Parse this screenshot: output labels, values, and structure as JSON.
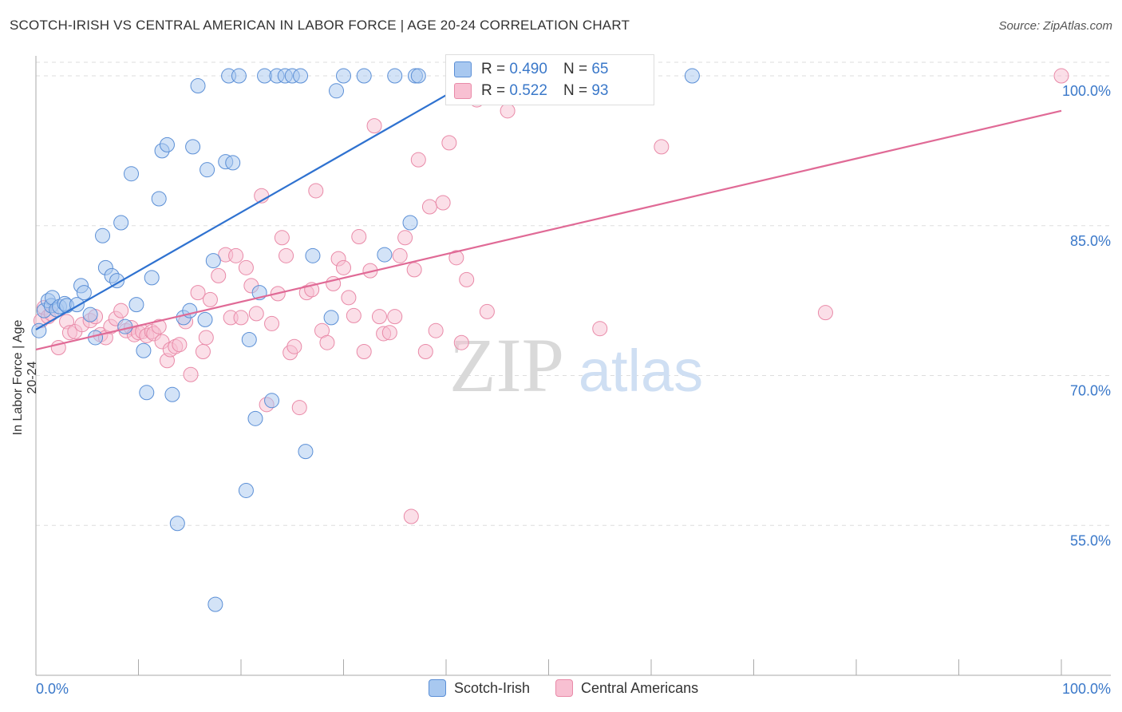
{
  "title": "SCOTCH-IRISH VS CENTRAL AMERICAN IN LABOR FORCE | AGE 20-24 CORRELATION CHART",
  "source": "Source: ZipAtlas.com",
  "watermark": {
    "zip": "ZIP",
    "atlas": "atlas"
  },
  "legend": {
    "rows": [
      {
        "r_label": "R =",
        "r_value": "0.490",
        "n_label": "N =",
        "n_value": "65"
      },
      {
        "r_label": "R =",
        "r_value": "0.522",
        "n_label": "N =",
        "n_value": "93"
      }
    ]
  },
  "bottom_legend": [
    "Scotch-Irish",
    "Central Americans"
  ],
  "colors": {
    "blue_fill": "#a8c8f0",
    "blue_stroke": "#5b8fd6",
    "blue_line": "#2f72d0",
    "pink_fill": "#f8c0d2",
    "pink_stroke": "#e98aa8",
    "pink_line": "#e06a96",
    "tick_text": "#3a78c9",
    "grid": "#dddddd"
  },
  "chart_data": {
    "type": "scatter",
    "title": "SCOTCH-IRISH VS CENTRAL AMERICAN IN LABOR FORCE | AGE 20-24 CORRELATION CHART",
    "xlabel": "",
    "ylabel": "In Labor Force | Age 20-24",
    "xlim": [
      0,
      100
    ],
    "ylim": [
      40,
      102
    ],
    "x_tick_labels": [
      "0.0%",
      "100.0%"
    ],
    "y_ticks": [
      55,
      70,
      85,
      100
    ],
    "y_tick_labels": [
      "55.0%",
      "70.0%",
      "85.0%",
      "100.0%"
    ],
    "grid": true,
    "legend_position": "top-center",
    "series": [
      {
        "name": "Scotch-Irish",
        "color": "#5b8fd6",
        "trend": {
          "x": [
            0,
            45
          ],
          "y": [
            74.6,
            101.0
          ]
        },
        "points": [
          [
            0.3,
            74.5
          ],
          [
            0.8,
            76.5
          ],
          [
            1.2,
            77.5
          ],
          [
            1.5,
            77.0
          ],
          [
            1.6,
            77.8
          ],
          [
            2.0,
            76.6
          ],
          [
            2.3,
            76.9
          ],
          [
            2.8,
            77.2
          ],
          [
            3.0,
            77.0
          ],
          [
            4.0,
            77.1
          ],
          [
            4.4,
            79.0
          ],
          [
            4.7,
            78.3
          ],
          [
            5.3,
            76.1
          ],
          [
            5.8,
            73.8
          ],
          [
            6.5,
            84.0
          ],
          [
            6.8,
            80.8
          ],
          [
            7.4,
            80.0
          ],
          [
            7.9,
            79.5
          ],
          [
            8.3,
            85.3
          ],
          [
            8.7,
            74.9
          ],
          [
            9.3,
            90.2
          ],
          [
            9.8,
            77.1
          ],
          [
            10.5,
            72.5
          ],
          [
            10.8,
            68.3
          ],
          [
            11.3,
            79.8
          ],
          [
            12.0,
            87.7
          ],
          [
            12.3,
            92.5
          ],
          [
            12.8,
            93.1
          ],
          [
            13.3,
            68.1
          ],
          [
            13.8,
            55.2
          ],
          [
            14.4,
            75.8
          ],
          [
            15.0,
            76.5
          ],
          [
            15.3,
            92.9
          ],
          [
            15.8,
            99.0
          ],
          [
            16.5,
            75.6
          ],
          [
            16.7,
            90.6
          ],
          [
            17.3,
            81.5
          ],
          [
            17.5,
            47.1
          ],
          [
            18.5,
            91.4
          ],
          [
            18.8,
            100.0
          ],
          [
            19.2,
            91.3
          ],
          [
            19.8,
            100.0
          ],
          [
            20.5,
            58.5
          ],
          [
            20.8,
            73.6
          ],
          [
            21.4,
            65.7
          ],
          [
            21.8,
            78.3
          ],
          [
            22.3,
            100.0
          ],
          [
            23.0,
            67.5
          ],
          [
            23.5,
            100.0
          ],
          [
            24.3,
            100.0
          ],
          [
            25.0,
            100.0
          ],
          [
            25.8,
            100.0
          ],
          [
            26.3,
            62.4
          ],
          [
            27.0,
            82.0
          ],
          [
            28.8,
            75.8
          ],
          [
            29.3,
            98.5
          ],
          [
            30.0,
            100.0
          ],
          [
            32.0,
            100.0
          ],
          [
            34.0,
            82.1
          ],
          [
            35.0,
            100.0
          ],
          [
            36.5,
            85.3
          ],
          [
            37.0,
            100.0
          ],
          [
            37.3,
            100.0
          ],
          [
            43.0,
            100.0
          ],
          [
            64.0,
            100.0
          ]
        ]
      },
      {
        "name": "Central Americans",
        "color": "#e98aa8",
        "trend": {
          "x": [
            0,
            100
          ],
          "y": [
            72.6,
            96.5
          ]
        },
        "points": [
          [
            0.5,
            75.5
          ],
          [
            0.8,
            76.8
          ],
          [
            1.2,
            75.9
          ],
          [
            1.5,
            76.2
          ],
          [
            2.2,
            72.8
          ],
          [
            3.0,
            75.4
          ],
          [
            3.3,
            74.3
          ],
          [
            3.8,
            74.4
          ],
          [
            4.5,
            75.1
          ],
          [
            5.3,
            75.5
          ],
          [
            5.8,
            75.9
          ],
          [
            6.3,
            74.1
          ],
          [
            6.8,
            73.8
          ],
          [
            7.3,
            74.9
          ],
          [
            7.8,
            75.7
          ],
          [
            8.3,
            76.5
          ],
          [
            8.8,
            74.5
          ],
          [
            9.3,
            74.8
          ],
          [
            9.6,
            74.1
          ],
          [
            10.0,
            74.3
          ],
          [
            10.4,
            74.4
          ],
          [
            10.8,
            74.0
          ],
          [
            11.3,
            74.4
          ],
          [
            11.5,
            74.2
          ],
          [
            12.0,
            74.9
          ],
          [
            12.3,
            73.4
          ],
          [
            12.8,
            71.5
          ],
          [
            13.1,
            72.6
          ],
          [
            13.6,
            72.9
          ],
          [
            14.0,
            73.1
          ],
          [
            14.6,
            75.4
          ],
          [
            15.1,
            70.1
          ],
          [
            15.8,
            78.3
          ],
          [
            16.3,
            72.4
          ],
          [
            16.6,
            73.8
          ],
          [
            17.0,
            77.6
          ],
          [
            17.8,
            80.0
          ],
          [
            18.5,
            82.1
          ],
          [
            19.0,
            75.8
          ],
          [
            19.5,
            82.0
          ],
          [
            20.0,
            75.8
          ],
          [
            20.5,
            80.8
          ],
          [
            21.0,
            79.0
          ],
          [
            21.5,
            76.2
          ],
          [
            22.0,
            88.0
          ],
          [
            22.5,
            67.1
          ],
          [
            23.0,
            75.2
          ],
          [
            23.6,
            78.2
          ],
          [
            24.0,
            83.8
          ],
          [
            24.4,
            82.0
          ],
          [
            24.8,
            72.3
          ],
          [
            25.2,
            72.9
          ],
          [
            25.7,
            66.8
          ],
          [
            26.4,
            78.3
          ],
          [
            26.9,
            78.6
          ],
          [
            27.3,
            88.5
          ],
          [
            27.9,
            74.5
          ],
          [
            28.4,
            73.3
          ],
          [
            29.0,
            79.2
          ],
          [
            29.5,
            81.7
          ],
          [
            30.0,
            80.8
          ],
          [
            30.5,
            77.8
          ],
          [
            31.0,
            76.0
          ],
          [
            31.5,
            83.9
          ],
          [
            32.0,
            72.4
          ],
          [
            32.6,
            80.5
          ],
          [
            33.0,
            95.0
          ],
          [
            33.5,
            75.9
          ],
          [
            33.9,
            74.2
          ],
          [
            34.5,
            74.3
          ],
          [
            35.0,
            75.9
          ],
          [
            35.5,
            82.0
          ],
          [
            36.0,
            83.8
          ],
          [
            36.6,
            55.9
          ],
          [
            36.9,
            80.6
          ],
          [
            37.3,
            91.6
          ],
          [
            38.0,
            72.4
          ],
          [
            38.4,
            86.9
          ],
          [
            39.0,
            74.5
          ],
          [
            39.7,
            87.3
          ],
          [
            40.3,
            93.3
          ],
          [
            41.0,
            81.8
          ],
          [
            41.5,
            73.3
          ],
          [
            42.0,
            79.6
          ],
          [
            43.0,
            97.6
          ],
          [
            44.0,
            76.4
          ],
          [
            46.0,
            96.5
          ],
          [
            48.0,
            100.0
          ],
          [
            55.0,
            74.7
          ],
          [
            61.0,
            92.9
          ],
          [
            77.0,
            76.3
          ],
          [
            100.0,
            100.0
          ],
          [
            45.0,
            100.0
          ]
        ]
      }
    ]
  }
}
